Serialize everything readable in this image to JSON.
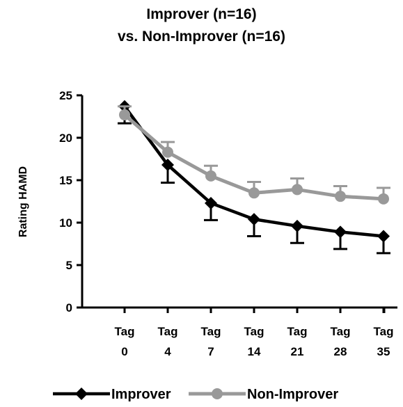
{
  "chart_data": {
    "type": "line",
    "title_line1": "Improver (n=16)",
    "title_line2": "vs. Non-Improver (n=16)",
    "ylabel": "Rating HAMD",
    "xlabel": "",
    "categories": [
      {
        "top": "Tag",
        "bottom": "0"
      },
      {
        "top": "Tag",
        "bottom": "4"
      },
      {
        "top": "Tag",
        "bottom": "7"
      },
      {
        "top": "Tag",
        "bottom": "14"
      },
      {
        "top": "Tag",
        "bottom": "21"
      },
      {
        "top": "Tag",
        "bottom": "28"
      },
      {
        "top": "Tag",
        "bottom": "35"
      }
    ],
    "ylim": [
      0,
      25
    ],
    "yticks": [
      0,
      5,
      10,
      15,
      20,
      25
    ],
    "grid": false,
    "legend_position": "bottom",
    "series": [
      {
        "name": "Improver",
        "color": "#000000",
        "marker": "diamond",
        "values": [
          23.7,
          16.8,
          12.3,
          10.4,
          9.6,
          8.9,
          8.4
        ],
        "errors": [
          2.0,
          2.1,
          2.0,
          2.0,
          2.0,
          2.0,
          2.0
        ]
      },
      {
        "name": "Non-Improver",
        "color": "#999999",
        "marker": "circle",
        "values": [
          22.7,
          18.3,
          15.5,
          13.5,
          13.9,
          13.1,
          12.8
        ],
        "errors": [
          1.0,
          1.2,
          1.2,
          1.3,
          1.3,
          1.2,
          1.3
        ]
      }
    ]
  }
}
